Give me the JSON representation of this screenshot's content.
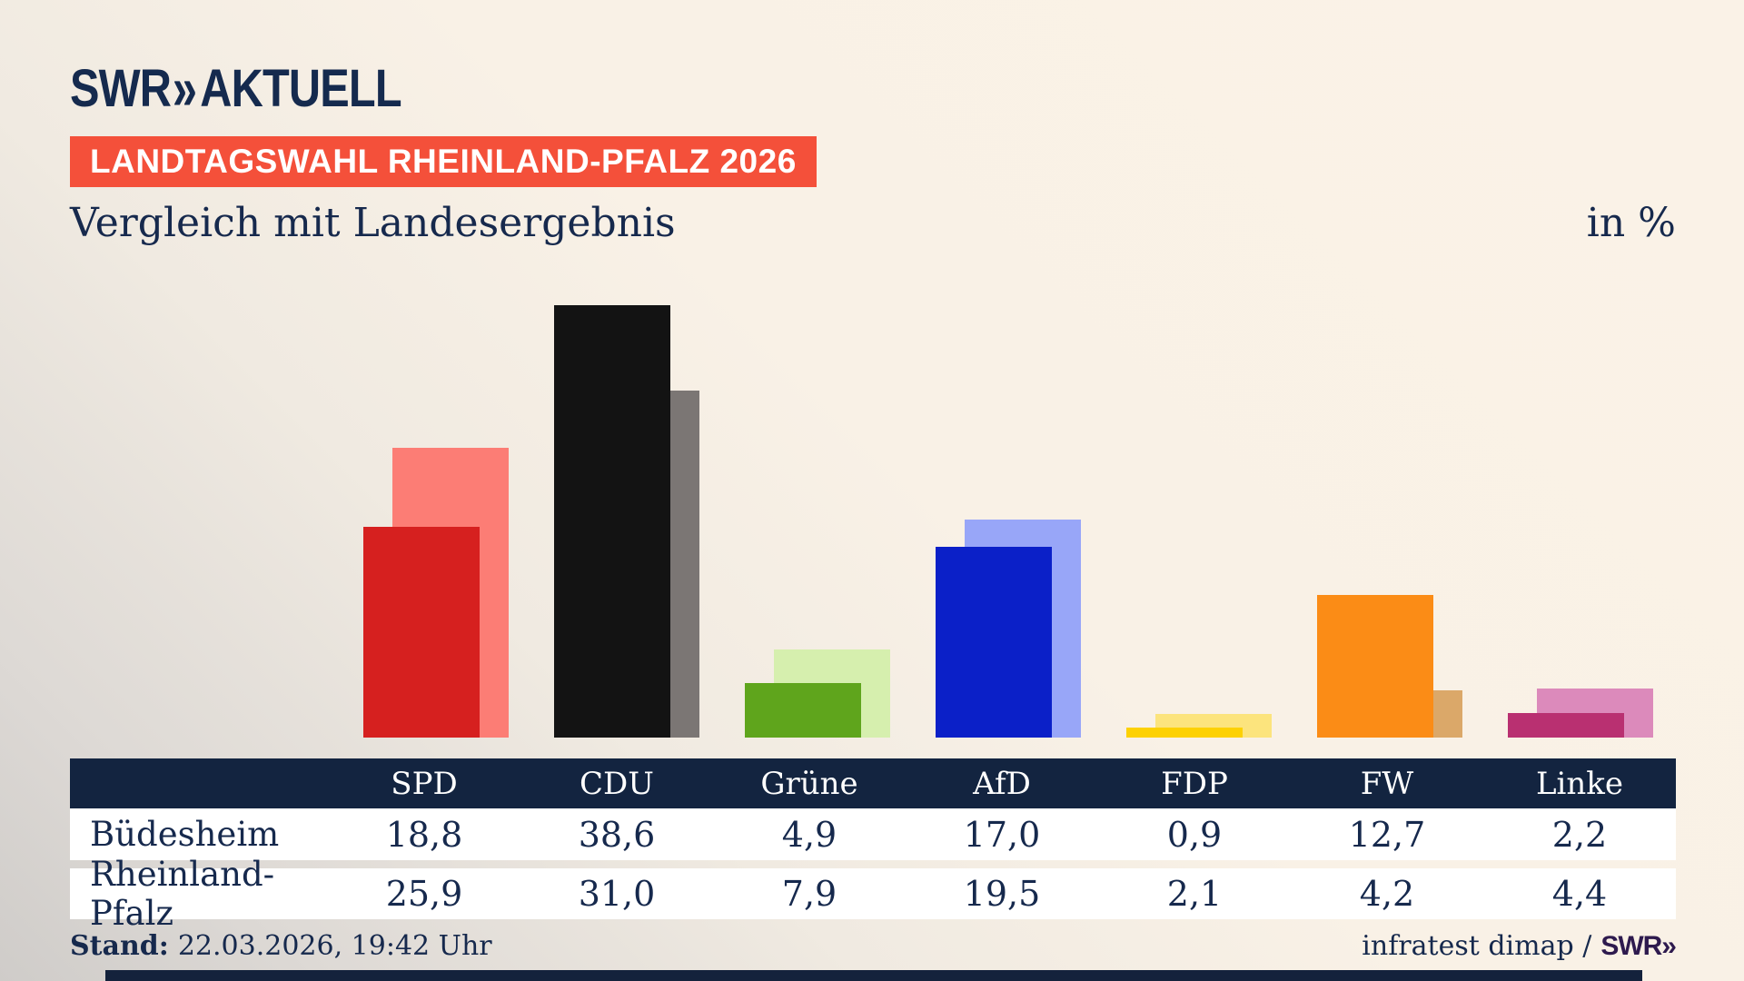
{
  "logo": {
    "swr": "SWR",
    "chevrons": "»",
    "aktuell": "AKTUELL"
  },
  "badge": {
    "label": "LANDTAGSWAHL RHEINLAND-PFALZ 2026",
    "bg_color": "#f4503a"
  },
  "title": "Vergleich mit Landesergebnis",
  "unit_label": "in %",
  "chart_data": {
    "type": "bar",
    "title": "Vergleich mit Landesergebnis",
    "unit": "%",
    "ylim": [
      0,
      40
    ],
    "grid": false,
    "legend_position": "none",
    "categories": [
      "SPD",
      "CDU",
      "Grüne",
      "AfD",
      "FDP",
      "FW",
      "Linke"
    ],
    "series": [
      {
        "name": "Büdesheim",
        "values": [
          18.8,
          38.6,
          4.9,
          17.0,
          0.9,
          12.7,
          2.2
        ],
        "colors": [
          "#d6201f",
          "#131313",
          "#5fa51c",
          "#0b20c8",
          "#fdd103",
          "#fb8c16",
          "#b93071"
        ]
      },
      {
        "name": "Rheinland-Pfalz",
        "values": [
          25.9,
          31.0,
          7.9,
          19.5,
          2.1,
          4.2,
          4.4
        ],
        "colors": [
          "#fc7d75",
          "#7b7674",
          "#d6efae",
          "#98a6f8",
          "#fce47d",
          "#dba869",
          "#dc8abb"
        ]
      }
    ]
  },
  "table": {
    "header": [
      "SPD",
      "CDU",
      "Grüne",
      "AfD",
      "FDP",
      "FW",
      "Linke"
    ],
    "rows": [
      {
        "label": "Büdesheim",
        "values": [
          "18,8",
          "38,6",
          "4,9",
          "17,0",
          "0,9",
          "12,7",
          "2,2"
        ]
      },
      {
        "label": "Rheinland-Pfalz",
        "values": [
          "25,9",
          "31,0",
          "7,9",
          "19,5",
          "2,1",
          "4,2",
          "4,4"
        ]
      }
    ]
  },
  "footer": {
    "stand_label": "Stand:",
    "stand_value": "22.03.2026, 19:42 Uhr",
    "source": "infratest dimap /",
    "source_brand": "SWR»"
  },
  "colors": {
    "background_cream": "#f9f1e6",
    "background_gray": "#cfccc9",
    "navy_text": "#16294d",
    "table_header_bg": "#132440",
    "badge_red": "#f4503a",
    "bottom_band": "#14223c",
    "brand_violet": "#2e1a4e"
  }
}
